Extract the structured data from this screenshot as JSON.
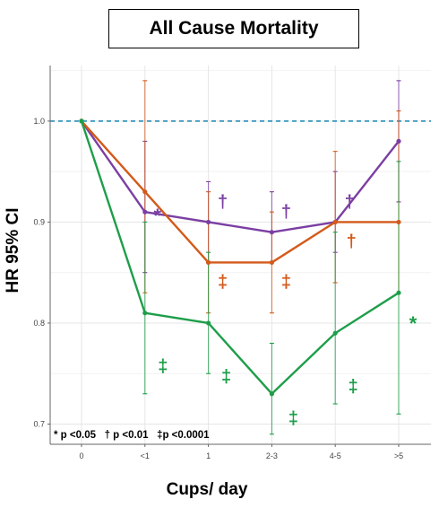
{
  "chart_data": {
    "type": "line",
    "title": "All Cause Mortality",
    "xlabel": "Cups/ day",
    "ylabel": "HR 95% CI",
    "categories": [
      "0",
      "<1",
      "1",
      "2-3",
      "4-5",
      ">5"
    ],
    "ylim": [
      0.68,
      1.055
    ],
    "yticks": [
      0.7,
      0.8,
      0.9,
      1.0
    ],
    "ytick_labels": [
      "0.7",
      "0.8",
      "0.9",
      "1.0"
    ],
    "reference_line": 1.0,
    "grid": true,
    "series": [
      {
        "color": "#7b3fa3",
        "values": [
          1.0,
          0.91,
          0.9,
          0.89,
          0.9,
          0.98
        ],
        "ci_low": [
          1.0,
          0.85,
          0.86,
          0.86,
          0.87,
          0.92
        ],
        "ci_high": [
          1.0,
          0.98,
          0.94,
          0.93,
          0.95,
          1.04
        ],
        "markers": [
          "",
          "*",
          "†",
          "†",
          "†",
          ""
        ]
      },
      {
        "color": "#d35a1a",
        "values": [
          1.0,
          0.93,
          0.86,
          0.86,
          0.9,
          0.9
        ],
        "ci_low": [
          1.0,
          0.83,
          0.81,
          0.81,
          0.84,
          0.83
        ],
        "ci_high": [
          1.0,
          1.04,
          0.93,
          0.91,
          0.97,
          1.01
        ],
        "markers": [
          "",
          "",
          "‡",
          "‡",
          "†",
          ""
        ]
      },
      {
        "color": "#1e9e4a",
        "values": [
          1.0,
          0.81,
          0.8,
          0.73,
          0.79,
          0.83
        ],
        "ci_low": [
          1.0,
          0.73,
          0.75,
          0.69,
          0.72,
          0.71
        ],
        "ci_high": [
          1.0,
          0.9,
          0.87,
          0.78,
          0.89,
          0.96
        ],
        "markers": [
          "",
          "‡",
          "‡",
          "‡",
          "‡",
          "*"
        ]
      }
    ],
    "legend_note": "* p <0.05   † p <0.01   ‡p <0.0001"
  }
}
